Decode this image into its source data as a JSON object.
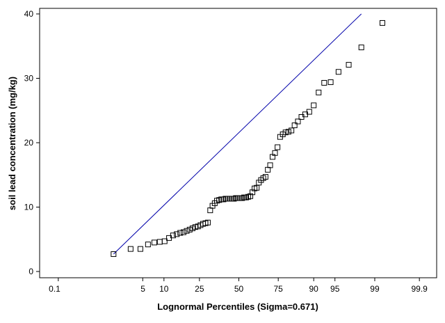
{
  "chart_data": {
    "type": "scatter",
    "title": "",
    "xlabel": "Lognormal Percentiles (Sigma=0.671)",
    "ylabel": "soil lead concentration (mg/kg)",
    "x_scale": "lognormal-probability",
    "x_tick_labels": [
      "0.1",
      "5",
      "10",
      "25",
      "50",
      "75",
      "90",
      "95",
      "99",
      "99.9"
    ],
    "y_ticks": [
      0,
      10,
      20,
      30,
      40
    ],
    "ylim": [
      0,
      40
    ],
    "grid": false,
    "legend": "none",
    "colors": {
      "points": "#000000",
      "fit_line": "#0000aa",
      "frame": "#000000"
    },
    "series": [
      {
        "x": [
          1.6,
          3.2,
          4.6,
          6.0,
          7.4,
          8.8,
          10.2,
          11.6,
          13.0,
          14.4,
          15.8,
          17.2,
          18.6,
          20.0,
          21.4,
          22.8,
          24.2,
          25.6,
          27.0,
          28.4,
          29.8,
          31.2,
          32.6,
          34.0,
          35.4,
          36.8,
          38.2,
          39.6,
          41.0,
          42.4,
          43.8,
          45.2,
          46.6,
          48.0,
          49.4,
          50.8,
          52.2,
          53.6,
          55.0,
          56.4,
          57.8,
          59.2,
          60.6,
          62.0,
          63.4,
          64.8,
          66.2,
          67.6,
          69.0,
          70.4,
          71.8,
          73.2,
          74.6,
          76.0,
          77.4,
          78.8,
          80.2,
          81.6,
          83.0,
          84.4,
          85.8,
          87.2,
          88.6,
          90.0,
          91.4,
          92.8,
          94.2,
          95.6,
          97.0,
          98.2,
          99.3
        ],
        "values": [
          2.7,
          3.5,
          3.5,
          4.2,
          4.5,
          4.6,
          4.7,
          5.2,
          5.6,
          5.8,
          6.0,
          6.1,
          6.3,
          6.5,
          6.7,
          6.9,
          7.0,
          7.2,
          7.4,
          7.5,
          7.6,
          9.5,
          10.2,
          10.6,
          11.0,
          11.1,
          11.2,
          11.2,
          11.3,
          11.3,
          11.3,
          11.3,
          11.3,
          11.4,
          11.4,
          11.4,
          11.4,
          11.5,
          11.5,
          11.6,
          11.7,
          12.3,
          12.9,
          13.0,
          13.8,
          14.2,
          14.5,
          14.7,
          15.8,
          16.5,
          17.8,
          18.4,
          19.3,
          20.9,
          21.3,
          21.6,
          21.7,
          21.9,
          22.7,
          23.3,
          24.0,
          24.4,
          24.8,
          25.8,
          27.8,
          29.3,
          29.4,
          31.0,
          32.1,
          34.8,
          38.6
        ]
      }
    ],
    "fit_line": {
      "x": [
        1.6,
        98.2
      ],
      "values": [
        2.7,
        40.0
      ]
    }
  }
}
